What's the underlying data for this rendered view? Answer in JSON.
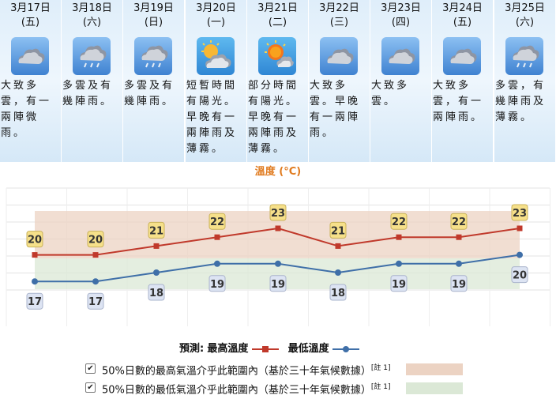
{
  "forecast": [
    {
      "date": "3月17日",
      "weekday": "(五)",
      "icon": "cloudy-icon",
      "desc": "大致多雲，有一兩陣微雨。"
    },
    {
      "date": "3月18日",
      "weekday": "(六)",
      "icon": "rain-icon",
      "desc": "多雲及有幾陣雨。"
    },
    {
      "date": "3月19日",
      "weekday": "(日)",
      "icon": "rain-icon",
      "desc": "多雲及有幾陣雨。"
    },
    {
      "date": "3月20日",
      "weekday": "(一)",
      "icon": "sunny-periods-icon",
      "desc": "短暫時間有陽光。早晚有一兩陣雨及薄霧。"
    },
    {
      "date": "3月21日",
      "weekday": "(二)",
      "icon": "sun-cloud-icon",
      "desc": "部分時間有陽光。早晚有一兩陣雨及薄霧。"
    },
    {
      "date": "3月22日",
      "weekday": "(三)",
      "icon": "cloudy-icon",
      "desc": "大致多雲。早晚有一兩陣雨。"
    },
    {
      "date": "3月23日",
      "weekday": "(四)",
      "icon": "cloudy-icon",
      "desc": "大致多雲。"
    },
    {
      "date": "3月24日",
      "weekday": "(五)",
      "icon": "cloudy-icon",
      "desc": "大致多雲，有一兩陣雨。"
    },
    {
      "date": "3月25日",
      "weekday": "(六)",
      "icon": "rain-icon",
      "desc": "多雲，有幾陣雨及薄霧。"
    }
  ],
  "chart_data": {
    "type": "line",
    "title": "溫度 (°C)",
    "categories": [
      "3月17日",
      "3月18日",
      "3月19日",
      "3月20日",
      "3月21日",
      "3月22日",
      "3月23日",
      "3月24日",
      "3月25日"
    ],
    "series": [
      {
        "name": "最高溫度",
        "color": "#c0392b",
        "values": [
          20,
          20,
          21,
          22,
          23,
          21,
          22,
          22,
          23
        ]
      },
      {
        "name": "最低溫度",
        "color": "#3f6fa8",
        "values": [
          17,
          17,
          18,
          19,
          19,
          18,
          19,
          19,
          20
        ]
      }
    ],
    "band_max_color": "#ecd3c3",
    "band_min_color": "#dbe8d6",
    "legend_prefix": "預測:"
  },
  "legend": {
    "prefix": "預測:",
    "max_label": "最高溫度",
    "min_label": "最低溫度",
    "band_max_text": "50%日數的最高氣溫介乎此範圍內（基於三十年氣候數據）",
    "band_min_text": "50%日數的最低氣溫介乎此範圍內（基於三十年氣候數據）",
    "note": "[註 1]",
    "checkmark": "✔"
  },
  "colors": {
    "max_line": "#c0392b",
    "min_line": "#3f6fa8",
    "max_label_bg": "#f6e08a",
    "min_label_bg": "#dde4f3"
  }
}
